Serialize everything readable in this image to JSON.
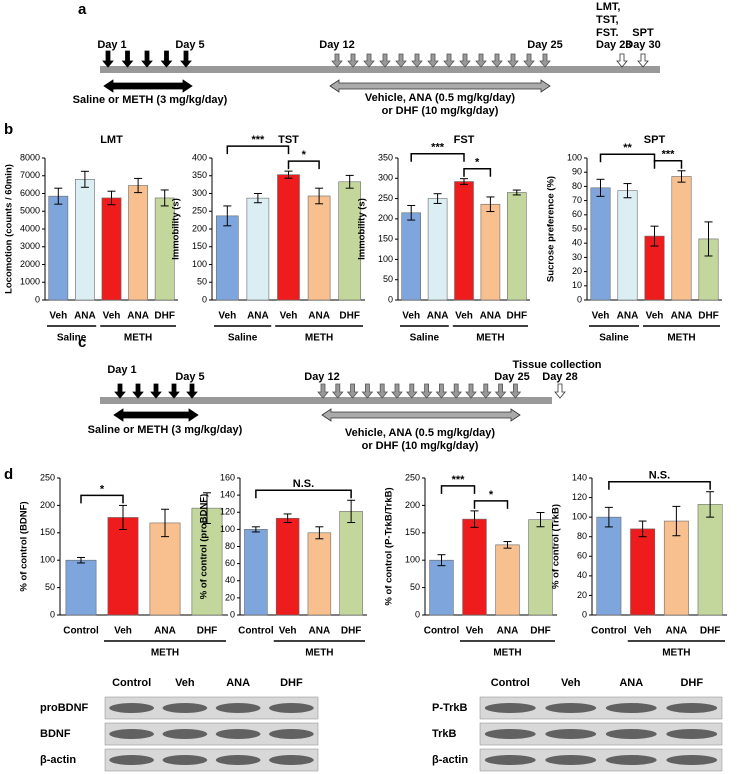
{
  "panel_labels": [
    "a",
    "b",
    "c",
    "d"
  ],
  "timeline_a": {
    "day_labels": [
      "Day 1",
      "Day 5",
      "Day 12",
      "Day 25"
    ],
    "test_labels": [
      "LMT,",
      "TST,",
      "FST.",
      "Day 28"
    ],
    "spt_labels": [
      "SPT",
      "Day 30"
    ],
    "treatment_1": "Saline or METH (3 mg/kg/day)",
    "treatment_2": [
      "Vehicle, ANA (0.5 mg/kg/day)",
      "or DHF (10 mg/kg/day)"
    ]
  },
  "timeline_c": {
    "day_labels": [
      "Day 1",
      "Day 5",
      "Day 12",
      "Day 25"
    ],
    "end_labels": [
      "Tissue collection",
      "Day 28"
    ],
    "treatment_1": "Saline or METH (3 mg/kg/day)",
    "treatment_2": [
      "Vehicle, ANA (0.5 mg/kg/day)",
      "or DHF (10 mg/kg/day)"
    ]
  },
  "chart_data": [
    {
      "type": "bar",
      "title": "LMT",
      "ylabel": "Locomotion (counts / 60min)",
      "categories": [
        "Veh",
        "ANA",
        "Veh",
        "ANA",
        "DHF"
      ],
      "groups": [
        "Saline",
        "Saline",
        "METH",
        "METH",
        "METH"
      ],
      "values": [
        5850,
        6800,
        5750,
        6450,
        5750
      ],
      "errors": [
        450,
        450,
        380,
        400,
        450
      ],
      "colors": [
        "#7ea6dc",
        "#dbeef4",
        "#ee1c1c",
        "#f9c08f",
        "#c3d69b"
      ],
      "ylim": [
        0,
        8000
      ],
      "yticks": [
        0,
        1000,
        2000,
        3000,
        4000,
        5000,
        6000,
        7000,
        8000
      ]
    },
    {
      "type": "bar",
      "title": "TST",
      "ylabel": "Immobility (s)",
      "categories": [
        "Veh",
        "ANA",
        "Veh",
        "ANA",
        "DHF"
      ],
      "groups": [
        "Saline",
        "Saline",
        "METH",
        "METH",
        "METH"
      ],
      "values": [
        237,
        287,
        353,
        293,
        333
      ],
      "errors": [
        28,
        13,
        10,
        22,
        18
      ],
      "colors": [
        "#7ea6dc",
        "#dbeef4",
        "#ee1c1c",
        "#f9c08f",
        "#c3d69b"
      ],
      "ylim": [
        0,
        400
      ],
      "yticks": [
        0,
        50,
        100,
        150,
        200,
        250,
        300,
        350,
        400
      ],
      "comparisons": [
        {
          "between": [
            0,
            2
          ],
          "label": "***"
        },
        {
          "between": [
            2,
            3
          ],
          "label": "*"
        }
      ]
    },
    {
      "type": "bar",
      "title": "FST",
      "ylabel": "Immobility (s)",
      "categories": [
        "Veh",
        "ANA",
        "Veh",
        "ANA",
        "DHF"
      ],
      "groups": [
        "Saline",
        "Saline",
        "METH",
        "METH",
        "METH"
      ],
      "values": [
        215,
        250,
        292,
        236,
        265
      ],
      "errors": [
        18,
        12,
        7,
        18,
        6
      ],
      "colors": [
        "#7ea6dc",
        "#dbeef4",
        "#ee1c1c",
        "#f9c08f",
        "#c3d69b"
      ],
      "ylim": [
        0,
        350
      ],
      "yticks": [
        0,
        50,
        100,
        150,
        200,
        250,
        300,
        350
      ],
      "comparisons": [
        {
          "between": [
            0,
            2
          ],
          "label": "***"
        },
        {
          "between": [
            2,
            3
          ],
          "label": "*"
        }
      ]
    },
    {
      "type": "bar",
      "title": "SPT",
      "ylabel": "Sucrose preference (%)",
      "categories": [
        "Veh",
        "ANA",
        "Veh",
        "ANA",
        "DHF"
      ],
      "groups": [
        "Saline",
        "Saline",
        "METH",
        "METH",
        "METH"
      ],
      "values": [
        79,
        77,
        45,
        87,
        43
      ],
      "errors": [
        6,
        5,
        7,
        4,
        12
      ],
      "colors": [
        "#7ea6dc",
        "#dbeef4",
        "#ee1c1c",
        "#f9c08f",
        "#c3d69b"
      ],
      "ylim": [
        0,
        100
      ],
      "yticks": [
        0,
        10,
        20,
        30,
        40,
        50,
        60,
        70,
        80,
        90,
        100
      ],
      "comparisons": [
        {
          "between": [
            0,
            2
          ],
          "label": "**"
        },
        {
          "between": [
            2,
            3
          ],
          "label": "***"
        }
      ]
    },
    {
      "type": "bar",
      "ylabel": "% of control (BDNF)",
      "categories": [
        "Control",
        "Veh",
        "ANA",
        "DHF"
      ],
      "groups": [
        null,
        "METH",
        "METH",
        "METH"
      ],
      "values": [
        100,
        178,
        168,
        195
      ],
      "errors": [
        5,
        22,
        25,
        28
      ],
      "colors": [
        "#7ea6dc",
        "#ee1c1c",
        "#f9c08f",
        "#c3d69b"
      ],
      "ylim": [
        0,
        250
      ],
      "yticks": [
        0,
        50,
        100,
        150,
        200,
        250
      ],
      "comparisons": [
        {
          "between": [
            0,
            1
          ],
          "label": "*"
        }
      ]
    },
    {
      "type": "bar",
      "ylabel": "% of control (proBDNF)",
      "categories": [
        "Control",
        "Veh",
        "ANA",
        "DHF"
      ],
      "groups": [
        null,
        "METH",
        "METH",
        "METH"
      ],
      "values": [
        100,
        113,
        96,
        121
      ],
      "errors": [
        3,
        5,
        7,
        13
      ],
      "colors": [
        "#7ea6dc",
        "#ee1c1c",
        "#f9c08f",
        "#c3d69b"
      ],
      "ylim": [
        0,
        160
      ],
      "yticks": [
        0,
        20,
        40,
        60,
        80,
        100,
        120,
        140,
        160
      ],
      "comparisons": [
        {
          "between": [
            0,
            3
          ],
          "label": "N.S."
        }
      ]
    },
    {
      "type": "bar",
      "ylabel": "% of control (P-TrkB/TrkB)",
      "categories": [
        "Control",
        "Veh",
        "ANA",
        "DHF"
      ],
      "groups": [
        null,
        "METH",
        "METH",
        "METH"
      ],
      "values": [
        100,
        175,
        128,
        174
      ],
      "errors": [
        10,
        15,
        6,
        13
      ],
      "colors": [
        "#7ea6dc",
        "#ee1c1c",
        "#f9c08f",
        "#c3d69b"
      ],
      "ylim": [
        0,
        250
      ],
      "yticks": [
        0,
        50,
        100,
        150,
        200,
        250
      ],
      "comparisons": [
        {
          "between": [
            0,
            1
          ],
          "label": "***"
        },
        {
          "between": [
            1,
            2
          ],
          "label": "*"
        }
      ]
    },
    {
      "type": "bar",
      "ylabel": "% of control (TrkB)",
      "categories": [
        "Control",
        "Veh",
        "ANA",
        "DHF"
      ],
      "groups": [
        null,
        "METH",
        "METH",
        "METH"
      ],
      "values": [
        100,
        88,
        96,
        113
      ],
      "errors": [
        10,
        8,
        15,
        13
      ],
      "colors": [
        "#7ea6dc",
        "#ee1c1c",
        "#f9c08f",
        "#c3d69b"
      ],
      "ylim": [
        0,
        140
      ],
      "yticks": [
        0,
        20,
        40,
        60,
        80,
        100,
        120,
        140
      ],
      "comparisons": [
        {
          "between": [
            0,
            3
          ],
          "label": "N.S."
        }
      ]
    }
  ],
  "blots": [
    {
      "columns": [
        "Control",
        "Veh",
        "ANA",
        "DHF"
      ],
      "rows": [
        "proBDNF",
        "BDNF",
        "β-actin"
      ]
    },
    {
      "columns": [
        "Control",
        "Veh",
        "ANA",
        "DHF"
      ],
      "rows": [
        "P-TrkB",
        "TrkB",
        "β-actin"
      ]
    }
  ]
}
